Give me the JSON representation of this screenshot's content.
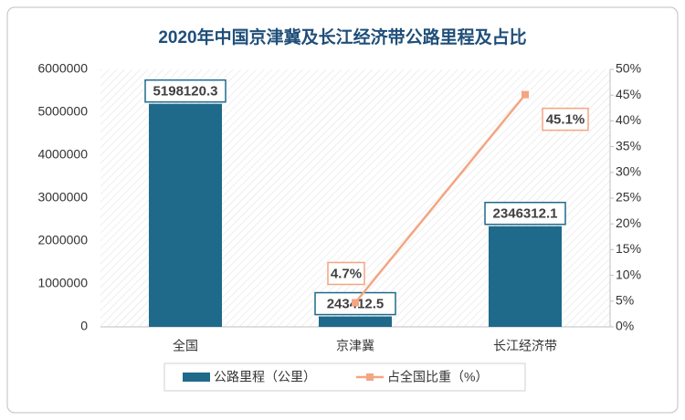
{
  "chart_data": {
    "type": "bar_line",
    "title": "2020年中国京津冀及长江经济带公路里程及占比",
    "categories": [
      "全国",
      "京津冀",
      "长江经济带"
    ],
    "series": [
      {
        "name": "公路里程（公里）",
        "color": "#1f6a8a",
        "type": "bar",
        "values": [
          5198120.3,
          243412.5,
          2346312.1
        ]
      },
      {
        "name": "占全国比重（%）",
        "color": "#f4a582",
        "type": "line",
        "axis": "y2",
        "values": [
          null,
          4.7,
          45.1
        ],
        "value_labels": [
          null,
          "4.7%",
          "45.1%"
        ]
      }
    ],
    "ylim": [
      0,
      6000000
    ],
    "yticks": [
      0,
      1000000,
      2000000,
      3000000,
      4000000,
      5000000,
      6000000
    ],
    "y2lim": [
      0,
      50
    ],
    "y2ticks": [
      {
        "value": 0,
        "label": "0%"
      },
      {
        "value": 5,
        "label": "5%"
      },
      {
        "value": 10,
        "label": "10%"
      },
      {
        "value": 15,
        "label": "15%"
      },
      {
        "value": 20,
        "label": "20%"
      },
      {
        "value": 25,
        "label": "25%"
      },
      {
        "value": 30,
        "label": "30%"
      },
      {
        "value": 35,
        "label": "35%"
      },
      {
        "value": 40,
        "label": "40%"
      },
      {
        "value": 45,
        "label": "45%"
      },
      {
        "value": 50,
        "label": "50%"
      }
    ],
    "legend": "bottom"
  }
}
